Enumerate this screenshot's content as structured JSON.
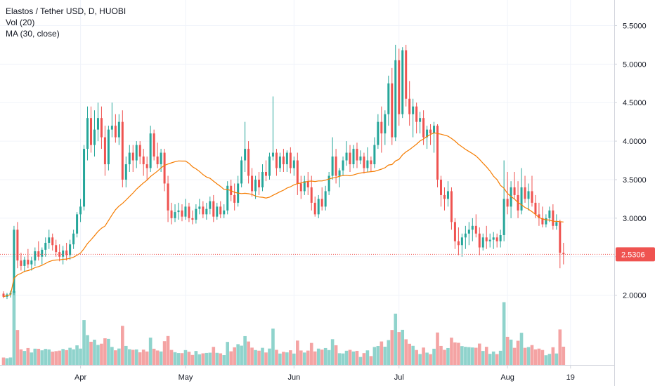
{
  "legend": {
    "title": "Elastos / Tether USD, D, HUOBI",
    "vol": "Vol (20)",
    "ma": "MA (30, close)"
  },
  "colors": {
    "up": "#26a69a",
    "down": "#ef5350",
    "vol_up": "#8fd3cc",
    "vol_down": "#f4a3a3",
    "ma": "#f57c00",
    "last_price": "#ef5350",
    "grid": "#f0f3fa",
    "axis_text": "#131722"
  },
  "chart_data": {
    "type": "candlestick",
    "title": "Elastos / Tether USD, D, HUOBI",
    "grid": true,
    "ylim": [
      1.55,
      5.65
    ],
    "y_ticks": [
      "5.5000",
      "5.0000",
      "4.5000",
      "4.0000",
      "3.5000",
      "3.0000",
      "2.5000",
      "2.0000"
    ],
    "x_ticks": [
      {
        "label": "Apr",
        "index": 22
      },
      {
        "label": "May",
        "index": 52
      },
      {
        "label": "Jun",
        "index": 83
      },
      {
        "label": "Jul",
        "index": 113
      },
      {
        "label": "Aug",
        "index": 144
      },
      {
        "label": "19",
        "index": 162
      }
    ],
    "last_price": "2.5306",
    "last_price_value": 2.5306,
    "candles": [
      [
        2.02,
        2.05,
        1.96,
        1.98
      ],
      [
        1.98,
        2.03,
        1.95,
        2.01
      ],
      [
        2.01,
        2.06,
        1.97,
        2.03
      ],
      [
        2.03,
        2.9,
        2.0,
        2.85
      ],
      [
        2.85,
        2.95,
        2.35,
        2.45
      ],
      [
        2.45,
        2.55,
        2.32,
        2.38
      ],
      [
        2.38,
        2.5,
        2.3,
        2.46
      ],
      [
        2.46,
        2.6,
        2.35,
        2.4
      ],
      [
        2.4,
        2.5,
        2.32,
        2.45
      ],
      [
        2.45,
        2.62,
        2.38,
        2.57
      ],
      [
        2.57,
        2.7,
        2.45,
        2.5
      ],
      [
        2.5,
        2.62,
        2.4,
        2.59
      ],
      [
        2.59,
        2.75,
        2.5,
        2.68
      ],
      [
        2.68,
        2.85,
        2.6,
        2.75
      ],
      [
        2.75,
        2.8,
        2.58,
        2.65
      ],
      [
        2.65,
        2.72,
        2.5,
        2.56
      ],
      [
        2.56,
        2.66,
        2.44,
        2.5
      ],
      [
        2.5,
        2.64,
        2.4,
        2.58
      ],
      [
        2.58,
        2.68,
        2.45,
        2.52
      ],
      [
        2.52,
        2.72,
        2.46,
        2.66
      ],
      [
        2.66,
        2.85,
        2.6,
        2.8
      ],
      [
        2.8,
        3.08,
        2.75,
        3.05
      ],
      [
        3.05,
        3.25,
        2.95,
        3.15
      ],
      [
        3.15,
        3.95,
        3.1,
        3.9
      ],
      [
        3.9,
        4.45,
        3.75,
        4.3
      ],
      [
        4.3,
        4.45,
        3.85,
        3.95
      ],
      [
        3.95,
        4.4,
        3.8,
        4.15
      ],
      [
        4.15,
        4.5,
        4.0,
        4.3
      ],
      [
        4.3,
        4.45,
        3.9,
        4.05
      ],
      [
        4.05,
        4.2,
        3.55,
        3.7
      ],
      [
        3.7,
        4.2,
        3.62,
        4.15
      ],
      [
        4.15,
        4.5,
        4.05,
        4.2
      ],
      [
        4.2,
        4.35,
        3.98,
        4.05
      ],
      [
        4.05,
        4.35,
        3.95,
        4.25
      ],
      [
        4.25,
        4.4,
        3.4,
        3.5
      ],
      [
        3.5,
        3.8,
        3.4,
        3.7
      ],
      [
        3.7,
        3.95,
        3.6,
        3.85
      ],
      [
        3.85,
        3.95,
        3.6,
        3.75
      ],
      [
        3.75,
        4.0,
        3.65,
        3.95
      ],
      [
        3.95,
        4.0,
        3.7,
        3.8
      ],
      [
        3.8,
        3.9,
        3.55,
        3.7
      ],
      [
        3.7,
        3.8,
        3.5,
        3.65
      ],
      [
        3.65,
        4.2,
        3.6,
        4.1
      ],
      [
        4.1,
        4.15,
        3.75,
        3.8
      ],
      [
        3.8,
        3.98,
        3.65,
        3.7
      ],
      [
        3.7,
        3.9,
        3.6,
        3.85
      ],
      [
        3.85,
        3.9,
        3.35,
        3.45
      ],
      [
        3.45,
        3.55,
        2.95,
        3.1
      ],
      [
        3.1,
        3.2,
        2.92,
        3.0
      ],
      [
        3.0,
        3.18,
        2.95,
        3.08
      ],
      [
        3.08,
        3.2,
        2.98,
        3.1
      ],
      [
        3.1,
        3.18,
        2.96,
        3.02
      ],
      [
        3.02,
        3.25,
        2.98,
        3.15
      ],
      [
        3.15,
        3.2,
        2.95,
        3.0
      ],
      [
        3.0,
        3.1,
        2.92,
        2.98
      ],
      [
        2.98,
        3.18,
        2.93,
        3.12
      ],
      [
        3.12,
        3.25,
        3.05,
        3.15
      ],
      [
        3.15,
        3.22,
        3.0,
        3.05
      ],
      [
        3.05,
        3.2,
        2.98,
        3.12
      ],
      [
        3.12,
        3.28,
        3.05,
        3.22
      ],
      [
        3.22,
        3.3,
        2.95,
        3.02
      ],
      [
        3.02,
        3.2,
        2.98,
        3.15
      ],
      [
        3.15,
        3.22,
        3.0,
        3.05
      ],
      [
        3.05,
        3.18,
        3.0,
        3.1
      ],
      [
        3.1,
        3.48,
        3.05,
        3.42
      ],
      [
        3.42,
        3.5,
        3.22,
        3.3
      ],
      [
        3.3,
        3.45,
        3.1,
        3.2
      ],
      [
        3.2,
        3.55,
        3.15,
        3.45
      ],
      [
        3.45,
        3.8,
        3.4,
        3.75
      ],
      [
        3.75,
        4.25,
        3.6,
        3.9
      ],
      [
        3.9,
        4.0,
        3.45,
        3.55
      ],
      [
        3.55,
        3.65,
        3.28,
        3.35
      ],
      [
        3.35,
        3.55,
        3.25,
        3.5
      ],
      [
        3.5,
        3.6,
        3.3,
        3.4
      ],
      [
        3.4,
        3.7,
        3.35,
        3.6
      ],
      [
        3.6,
        3.75,
        3.48,
        3.55
      ],
      [
        3.55,
        3.85,
        3.5,
        3.8
      ],
      [
        3.8,
        4.58,
        3.75,
        3.85
      ],
      [
        3.85,
        3.9,
        3.55,
        3.65
      ],
      [
        3.65,
        3.85,
        3.6,
        3.8
      ],
      [
        3.8,
        3.9,
        3.6,
        3.7
      ],
      [
        3.7,
        3.88,
        3.6,
        3.85
      ],
      [
        3.85,
        3.92,
        3.58,
        3.65
      ],
      [
        3.65,
        3.8,
        3.55,
        3.75
      ],
      [
        3.75,
        3.85,
        3.3,
        3.45
      ],
      [
        3.45,
        3.55,
        3.25,
        3.35
      ],
      [
        3.35,
        3.55,
        3.3,
        3.48
      ],
      [
        3.48,
        3.6,
        3.3,
        3.4
      ],
      [
        3.4,
        3.55,
        3.1,
        3.2
      ],
      [
        3.2,
        3.28,
        3.02,
        3.05
      ],
      [
        3.05,
        3.3,
        3.0,
        3.25
      ],
      [
        3.25,
        3.4,
        3.1,
        3.15
      ],
      [
        3.15,
        3.42,
        3.1,
        3.35
      ],
      [
        3.35,
        3.6,
        3.3,
        3.55
      ],
      [
        3.55,
        4.05,
        3.5,
        3.8
      ],
      [
        3.8,
        3.9,
        3.45,
        3.55
      ],
      [
        3.55,
        3.65,
        3.4,
        3.62
      ],
      [
        3.62,
        3.8,
        3.55,
        3.75
      ],
      [
        3.75,
        4.0,
        3.68,
        3.85
      ],
      [
        3.85,
        3.95,
        3.6,
        3.7
      ],
      [
        3.7,
        3.95,
        3.65,
        3.9
      ],
      [
        3.9,
        3.98,
        3.65,
        3.75
      ],
      [
        3.75,
        3.88,
        3.7,
        3.8
      ],
      [
        3.8,
        3.85,
        3.58,
        3.65
      ],
      [
        3.65,
        3.92,
        3.6,
        3.75
      ],
      [
        3.75,
        3.8,
        3.6,
        3.7
      ],
      [
        3.7,
        4.05,
        3.65,
        3.95
      ],
      [
        3.95,
        4.35,
        3.9,
        4.25
      ],
      [
        4.25,
        4.45,
        3.85,
        4.1
      ],
      [
        4.1,
        4.4,
        3.95,
        4.35
      ],
      [
        4.35,
        4.85,
        4.2,
        4.75
      ],
      [
        4.75,
        4.95,
        3.95,
        4.05
      ],
      [
        4.05,
        5.25,
        4.0,
        5.05
      ],
      [
        5.05,
        5.2,
        4.2,
        4.35
      ],
      [
        4.35,
        5.22,
        4.3,
        5.18
      ],
      [
        5.18,
        5.25,
        4.45,
        4.55
      ],
      [
        4.55,
        4.78,
        4.2,
        4.35
      ],
      [
        4.35,
        4.55,
        4.05,
        4.45
      ],
      [
        4.45,
        4.5,
        4.1,
        4.25
      ],
      [
        4.25,
        4.38,
        4.1,
        4.3
      ],
      [
        4.3,
        4.4,
        3.95,
        4.05
      ],
      [
        4.05,
        4.2,
        3.9,
        4.15
      ],
      [
        4.15,
        4.22,
        3.95,
        4.1
      ],
      [
        4.1,
        4.25,
        3.85,
        4.2
      ],
      [
        4.2,
        4.22,
        3.4,
        3.5
      ],
      [
        3.5,
        3.55,
        3.15,
        3.3
      ],
      [
        3.3,
        3.4,
        3.1,
        3.25
      ],
      [
        3.25,
        3.48,
        3.15,
        3.35
      ],
      [
        3.35,
        3.4,
        2.85,
        2.95
      ],
      [
        2.95,
        3.0,
        2.6,
        2.7
      ],
      [
        2.7,
        2.88,
        2.52,
        2.65
      ],
      [
        2.65,
        2.8,
        2.5,
        2.75
      ],
      [
        2.75,
        2.9,
        2.6,
        2.8
      ],
      [
        2.8,
        2.95,
        2.65,
        2.85
      ],
      [
        2.85,
        3.0,
        2.7,
        2.9
      ],
      [
        2.9,
        3.05,
        2.75,
        2.8
      ],
      [
        2.8,
        2.88,
        2.52,
        2.62
      ],
      [
        2.62,
        2.8,
        2.58,
        2.75
      ],
      [
        2.75,
        2.9,
        2.6,
        2.7
      ],
      [
        2.7,
        2.8,
        2.62,
        2.72
      ],
      [
        2.72,
        2.82,
        2.6,
        2.75
      ],
      [
        2.75,
        2.8,
        2.62,
        2.7
      ],
      [
        2.7,
        2.85,
        2.62,
        2.78
      ],
      [
        2.78,
        3.75,
        2.7,
        3.25
      ],
      [
        3.25,
        3.6,
        3.05,
        3.15
      ],
      [
        3.15,
        3.48,
        3.0,
        3.4
      ],
      [
        3.4,
        3.6,
        3.25,
        3.3
      ],
      [
        3.3,
        3.48,
        3.0,
        3.1
      ],
      [
        3.1,
        3.65,
        3.05,
        3.4
      ],
      [
        3.4,
        3.55,
        3.2,
        3.25
      ],
      [
        3.25,
        3.45,
        3.1,
        3.35
      ],
      [
        3.35,
        3.55,
        3.15,
        3.2
      ],
      [
        3.2,
        3.3,
        3.0,
        3.05
      ],
      [
        3.05,
        3.2,
        2.9,
        3.0
      ],
      [
        3.0,
        3.15,
        2.88,
        2.92
      ],
      [
        2.92,
        3.05,
        2.88,
        3.0
      ],
      [
        3.0,
        3.15,
        2.95,
        3.1
      ],
      [
        3.1,
        3.18,
        2.85,
        2.9
      ],
      [
        2.9,
        3.05,
        2.85,
        2.95
      ],
      [
        2.95,
        2.98,
        2.35,
        2.55
      ],
      [
        2.55,
        2.68,
        2.4,
        2.5306
      ]
    ],
    "ma": {
      "name": "MA (30, close)",
      "period": 30
    }
  }
}
